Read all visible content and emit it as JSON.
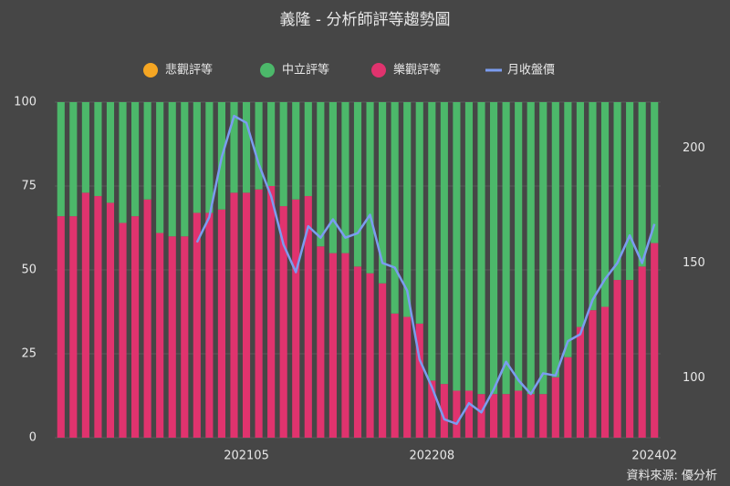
{
  "chart_data": {
    "type": "bar",
    "title": "義隆 - 分析師評等趨勢圖",
    "source": "資料來源: 優分析",
    "categories": [
      null,
      null,
      null,
      null,
      null,
      null,
      null,
      null,
      null,
      null,
      null,
      null,
      null,
      null,
      null,
      "202105",
      null,
      null,
      null,
      null,
      null,
      null,
      null,
      null,
      null,
      null,
      null,
      null,
      null,
      null,
      "202208",
      null,
      null,
      null,
      null,
      null,
      null,
      null,
      null,
      null,
      null,
      null,
      null,
      null,
      null,
      null,
      null,
      null,
      "202402"
    ],
    "series": [
      {
        "name": "悲觀評等",
        "color": "#f5a623",
        "values": [
          0,
          0,
          0,
          0,
          0,
          0,
          0,
          0,
          0,
          0,
          0,
          0,
          0,
          0,
          0,
          0,
          0,
          0,
          0,
          0,
          0,
          0,
          0,
          0,
          0,
          0,
          0,
          0,
          0,
          0,
          0,
          0,
          0,
          0,
          0,
          0,
          0,
          0,
          0,
          0,
          0,
          0,
          0,
          0,
          0,
          0,
          0,
          0,
          0
        ]
      },
      {
        "name": "中立評等",
        "color": "#4cb86a",
        "values": [
          34,
          34,
          27,
          28,
          30,
          36,
          34,
          29,
          39,
          40,
          40,
          33,
          33,
          32,
          27,
          27,
          26,
          25,
          31,
          29,
          28,
          43,
          45,
          45,
          49,
          51,
          54,
          63,
          64,
          66,
          83,
          84,
          86,
          86,
          87,
          87,
          87,
          86,
          87,
          87,
          82,
          76,
          67,
          62,
          61,
          53,
          53,
          49,
          42
        ]
      },
      {
        "name": "樂觀評等",
        "color": "#e0336e",
        "values": [
          66,
          66,
          73,
          72,
          70,
          64,
          66,
          71,
          61,
          60,
          60,
          67,
          67,
          68,
          73,
          73,
          74,
          75,
          69,
          71,
          72,
          57,
          55,
          55,
          51,
          49,
          46,
          37,
          36,
          34,
          17,
          16,
          14,
          14,
          13,
          13,
          13,
          14,
          13,
          13,
          18,
          24,
          33,
          38,
          39,
          47,
          47,
          51,
          58
        ]
      },
      {
        "name": "月收盤價",
        "color": "#7b9cf0",
        "type": "line",
        "axis": "y2",
        "values": [
          null,
          null,
          null,
          null,
          null,
          null,
          null,
          null,
          null,
          null,
          null,
          159,
          170,
          196,
          214,
          211,
          193,
          179,
          158,
          146,
          166,
          161,
          169,
          161,
          163,
          171,
          150,
          148,
          138,
          108,
          96,
          82,
          80,
          89,
          85,
          95,
          107,
          99,
          93,
          102,
          101,
          116,
          119,
          134,
          143,
          150,
          162,
          150,
          167
        ]
      }
    ],
    "ylim": [
      0,
      100
    ],
    "yticks": [
      0,
      25,
      50,
      75,
      100
    ],
    "y2lim": [
      74,
      220
    ],
    "y2ticks": [
      100,
      150,
      200
    ],
    "grid": true
  }
}
